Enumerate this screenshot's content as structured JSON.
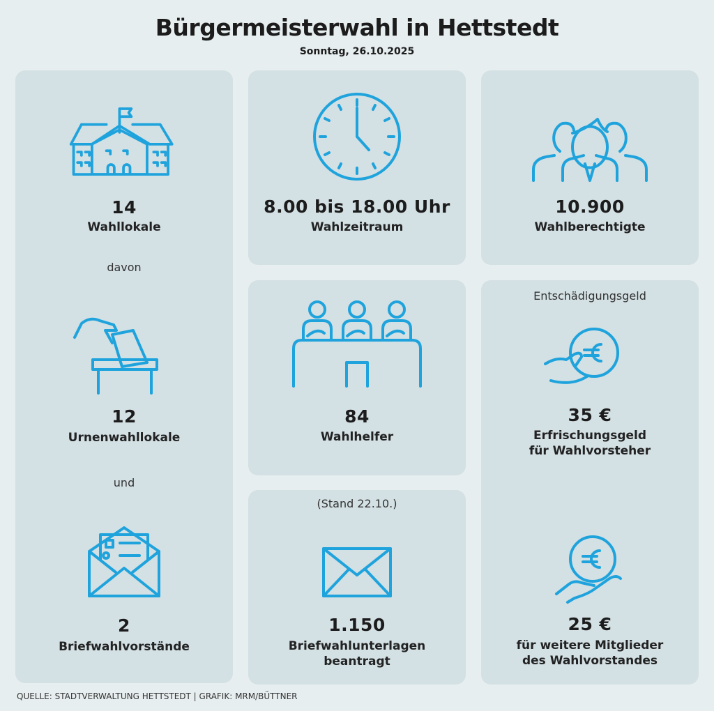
{
  "header": {
    "title": "Bürgermeisterwahl in Hettstedt",
    "date": "Sonntag, 26.10.2025"
  },
  "polling_stations": {
    "count": "14",
    "label": "Wahllokale",
    "sep1": "davon",
    "urn_count": "12",
    "urn_label": "Urnenwahllokale",
    "sep2": "und",
    "postal_count": "2",
    "postal_label": "Briefwahlvorstände"
  },
  "voting_time": {
    "value": "8.00 bis 18.00 Uhr",
    "label": "Wahlzeitraum"
  },
  "eligible": {
    "value": "10.900",
    "label": "Wahlberechtigte"
  },
  "helpers": {
    "value": "84",
    "label": "Wahlhelfer"
  },
  "postal_votes": {
    "note": "(Stand 22.10.)",
    "value": "1.150",
    "label_line1": "Briefwahlunterlagen",
    "label_line2": "beantragt"
  },
  "compensation": {
    "heading": "Entschädigungsgeld",
    "amount1": "35 €",
    "label1_line1": "Erfrischungsgeld",
    "label1_line2": "für Wahlvorsteher",
    "amount2": "25 €",
    "label2_line1": "für weitere Mitglieder",
    "label2_line2": "des Wahlvorstandes"
  },
  "footer": {
    "source": "QUELLE: STADTVERWALTUNG HETTSTEDT | GRAFIK: MRM/BÜTTNER"
  },
  "colors": {
    "accent": "#1fa3dc",
    "panel": "#d3e0e4",
    "background": "#e7eef0"
  }
}
